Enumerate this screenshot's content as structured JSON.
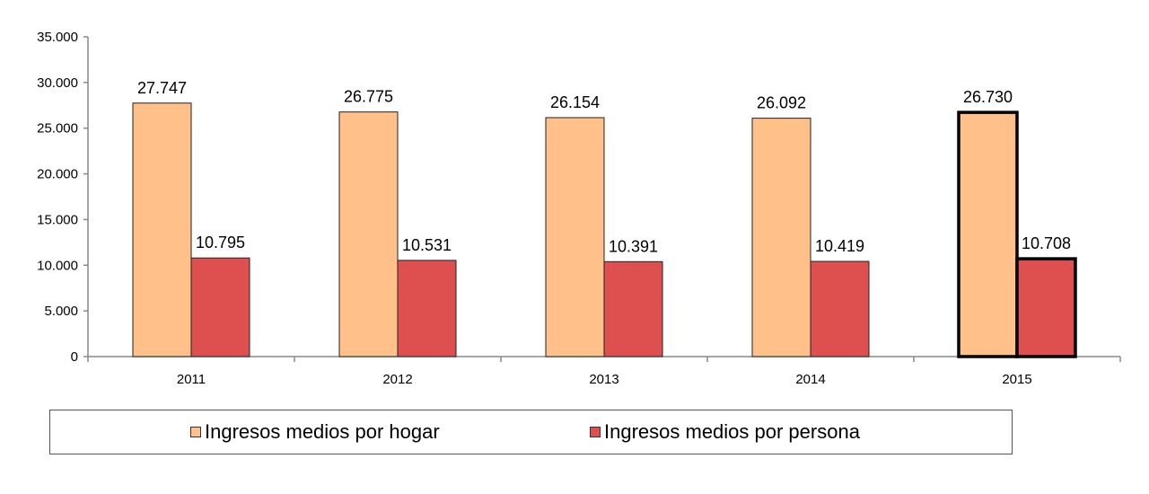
{
  "chart_data": {
    "type": "bar",
    "categories": [
      "2011",
      "2012",
      "2013",
      "2014",
      "2015"
    ],
    "series": [
      {
        "name": "Ingresos medios por hogar",
        "values": [
          27747,
          26775,
          26154,
          26092,
          26730
        ],
        "labels": [
          "27.747",
          "26.775",
          "26.154",
          "26.092",
          "26.730"
        ],
        "color": "#FFC08A"
      },
      {
        "name": "Ingresos medios por persona",
        "values": [
          10795,
          10531,
          10391,
          10419,
          10708
        ],
        "labels": [
          "10.795",
          "10.531",
          "10.391",
          "10.419",
          "10.708"
        ],
        "color": "#DE5050"
      }
    ],
    "ylim": [
      0,
      35000
    ],
    "yticks": [
      0,
      5000,
      10000,
      15000,
      20000,
      25000,
      30000,
      35000
    ],
    "ytick_labels": [
      "0",
      "5.000",
      "10.000",
      "15.000",
      "20.000",
      "25.000",
      "30.000",
      "35.000"
    ],
    "highlighted_category": "2015",
    "grid": false,
    "legend_position": "bottom",
    "title": "",
    "xlabel": "",
    "ylabel": ""
  }
}
